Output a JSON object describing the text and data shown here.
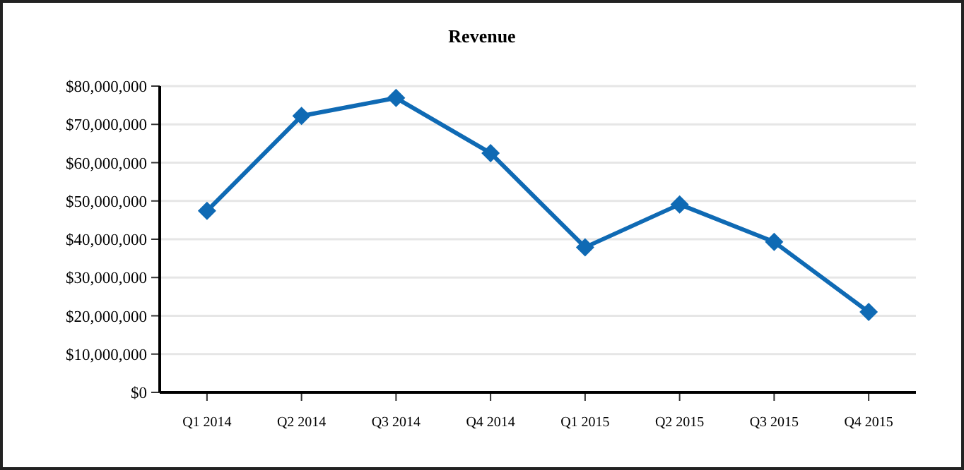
{
  "chart_data": {
    "type": "line",
    "title": "Revenue",
    "categories": [
      "Q1 2014",
      "Q2 2014",
      "Q3 2014",
      "Q4 2014",
      "Q1 2015",
      "Q2 2015",
      "Q3 2015",
      "Q4 2015"
    ],
    "series": [
      {
        "color": "#0f6ab4",
        "values": [
          47400000,
          72200000,
          76900000,
          62500000,
          37900000,
          49100000,
          39300000,
          21000000
        ]
      }
    ],
    "ylim": [
      0,
      80000000
    ],
    "yticks": [
      {
        "value": 0,
        "label": "$0"
      },
      {
        "value": 10000000,
        "label": "$10,000,000"
      },
      {
        "value": 20000000,
        "label": "$20,000,000"
      },
      {
        "value": 30000000,
        "label": "$30,000,000"
      },
      {
        "value": 40000000,
        "label": "$40,000,000"
      },
      {
        "value": 50000000,
        "label": "$50,000,000"
      },
      {
        "value": 60000000,
        "label": "$60,000,000"
      },
      {
        "value": 70000000,
        "label": "$70,000,000"
      },
      {
        "value": 80000000,
        "label": "$80,000,000"
      }
    ],
    "grid": "y",
    "marker": "diamond",
    "line_style": "solid"
  }
}
